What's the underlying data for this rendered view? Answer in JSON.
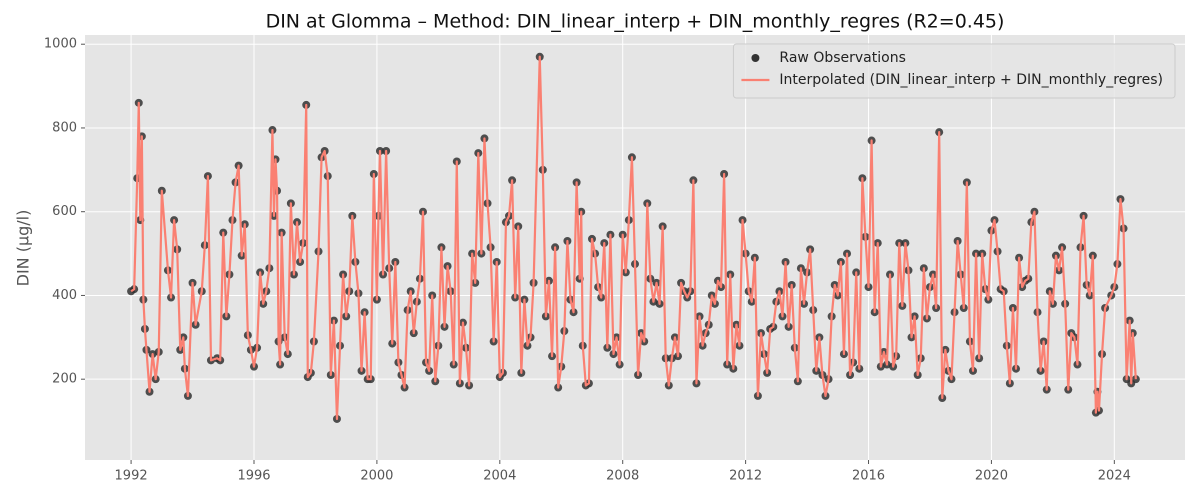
{
  "chart_data": {
    "type": "line",
    "title": "DIN at Glomma – Method: DIN_linear_interp + DIN_monthly_regres (R2=0.45)",
    "y_label": "DIN (µg/l)",
    "xlim": [
      1990.5,
      2026.3
    ],
    "xticks": [
      1992,
      1996,
      2000,
      2004,
      2008,
      2012,
      2016,
      2020,
      2024
    ],
    "ylim": [
      7,
      1022
    ],
    "yticks": [
      200,
      400,
      600,
      800,
      1000
    ],
    "grid": true,
    "legend": "upper right",
    "x": [
      1992.0,
      1992.1,
      1992.2,
      1992.25,
      1992.3,
      1992.35,
      1992.4,
      1992.45,
      1992.5,
      1992.6,
      1992.7,
      1992.8,
      1992.9,
      1993.0,
      1993.2,
      1993.3,
      1993.4,
      1993.5,
      1993.6,
      1993.7,
      1993.75,
      1993.85,
      1994.0,
      1994.1,
      1994.3,
      1994.4,
      1994.5,
      1994.6,
      1994.8,
      1994.9,
      1995.0,
      1995.1,
      1995.2,
      1995.3,
      1995.4,
      1995.5,
      1995.6,
      1995.7,
      1995.8,
      1995.9,
      1996.0,
      1996.1,
      1996.2,
      1996.3,
      1996.4,
      1996.5,
      1996.6,
      1996.65,
      1996.7,
      1996.75,
      1996.8,
      1996.85,
      1996.9,
      1997.0,
      1997.1,
      1997.2,
      1997.3,
      1997.4,
      1997.5,
      1997.6,
      1997.7,
      1997.75,
      1997.85,
      1997.95,
      1998.1,
      1998.2,
      1998.3,
      1998.4,
      1998.5,
      1998.6,
      1998.7,
      1998.8,
      1998.9,
      1999.0,
      1999.1,
      1999.2,
      1999.3,
      1999.4,
      1999.5,
      1999.6,
      1999.7,
      1999.8,
      1999.9,
      2000.0,
      2000.05,
      2000.1,
      2000.2,
      2000.3,
      2000.4,
      2000.5,
      2000.6,
      2000.7,
      2000.8,
      2000.9,
      2001.0,
      2001.1,
      2001.2,
      2001.3,
      2001.4,
      2001.5,
      2001.6,
      2001.7,
      2001.8,
      2001.9,
      2002.0,
      2002.1,
      2002.2,
      2002.3,
      2002.4,
      2002.5,
      2002.6,
      2002.7,
      2002.8,
      2002.9,
      2003.0,
      2003.1,
      2003.2,
      2003.3,
      2003.4,
      2003.5,
      2003.6,
      2003.7,
      2003.8,
      2003.9,
      2004.0,
      2004.1,
      2004.2,
      2004.3,
      2004.4,
      2004.5,
      2004.6,
      2004.7,
      2004.8,
      2004.9,
      2005.0,
      2005.1,
      2005.3,
      2005.4,
      2005.5,
      2005.6,
      2005.7,
      2005.8,
      2005.9,
      2006.0,
      2006.1,
      2006.2,
      2006.3,
      2006.4,
      2006.5,
      2006.6,
      2006.65,
      2006.7,
      2006.8,
      2006.9,
      2007.0,
      2007.1,
      2007.2,
      2007.3,
      2007.4,
      2007.5,
      2007.6,
      2007.7,
      2007.8,
      2007.9,
      2008.0,
      2008.1,
      2008.2,
      2008.3,
      2008.4,
      2008.5,
      2008.6,
      2008.7,
      2008.8,
      2008.9,
      2009.0,
      2009.1,
      2009.2,
      2009.3,
      2009.4,
      2009.5,
      2009.6,
      2009.7,
      2009.8,
      2009.9,
      2010.0,
      2010.1,
      2010.2,
      2010.3,
      2010.4,
      2010.5,
      2010.6,
      2010.7,
      2010.8,
      2010.9,
      2011.0,
      2011.1,
      2011.2,
      2011.3,
      2011.4,
      2011.5,
      2011.6,
      2011.7,
      2011.8,
      2011.9,
      2012.0,
      2012.1,
      2012.2,
      2012.3,
      2012.4,
      2012.5,
      2012.6,
      2012.7,
      2012.8,
      2012.9,
      2013.0,
      2013.1,
      2013.2,
      2013.3,
      2013.4,
      2013.5,
      2013.6,
      2013.7,
      2013.8,
      2013.9,
      2014.0,
      2014.1,
      2014.2,
      2014.3,
      2014.4,
      2014.5,
      2014.6,
      2014.7,
      2014.8,
      2014.9,
      2015.0,
      2015.1,
      2015.2,
      2015.3,
      2015.4,
      2015.5,
      2015.6,
      2015.7,
      2015.8,
      2015.9,
      2016.0,
      2016.1,
      2016.2,
      2016.3,
      2016.4,
      2016.5,
      2016.6,
      2016.7,
      2016.8,
      2016.9,
      2017.0,
      2017.1,
      2017.2,
      2017.3,
      2017.4,
      2017.5,
      2017.6,
      2017.7,
      2017.8,
      2017.9,
      2018.0,
      2018.1,
      2018.2,
      2018.3,
      2018.4,
      2018.5,
      2018.6,
      2018.7,
      2018.8,
      2018.9,
      2019.0,
      2019.1,
      2019.2,
      2019.3,
      2019.4,
      2019.5,
      2019.6,
      2019.7,
      2019.8,
      2019.9,
      2020.0,
      2020.1,
      2020.2,
      2020.3,
      2020.4,
      2020.5,
      2020.6,
      2020.7,
      2020.8,
      2020.9,
      2021.0,
      2021.1,
      2021.2,
      2021.3,
      2021.4,
      2021.5,
      2021.6,
      2021.7,
      2021.8,
      2021.9,
      2022.0,
      2022.1,
      2022.2,
      2022.3,
      2022.4,
      2022.5,
      2022.6,
      2022.7,
      2022.8,
      2022.9,
      2023.0,
      2023.1,
      2023.2,
      2023.3,
      2023.4,
      2023.45,
      2023.5,
      2023.6,
      2023.7,
      2023.9,
      2024.0,
      2024.1,
      2024.2,
      2024.3,
      2024.4,
      2024.5,
      2024.55,
      2024.6,
      2024.7
    ],
    "series": [
      {
        "name": "Raw Observations",
        "style": "scatter",
        "color": "#333333",
        "values": [
          410,
          415,
          680,
          860,
          580,
          780,
          390,
          320,
          270,
          170,
          260,
          200,
          265,
          650,
          460,
          395,
          580,
          510,
          270,
          300,
          225,
          160,
          430,
          330,
          410,
          520,
          685,
          245,
          250,
          245,
          550,
          350,
          450,
          580,
          670,
          710,
          495,
          570,
          305,
          270,
          230,
          275,
          455,
          380,
          410,
          465,
          795,
          590,
          725,
          650,
          290,
          235,
          550,
          300,
          260,
          620,
          450,
          575,
          480,
          525,
          855,
          205,
          215,
          290,
          505,
          730,
          745,
          685,
          210,
          340,
          105,
          280,
          450,
          350,
          410,
          590,
          480,
          405,
          220,
          360,
          200,
          200,
          690,
          390,
          590,
          745,
          450,
          745,
          465,
          285,
          480,
          240,
          210,
          180,
          365,
          410,
          310,
          385,
          440,
          600,
          240,
          220,
          400,
          195,
          280,
          515,
          325,
          470,
          410,
          235,
          720,
          190,
          335,
          275,
          185,
          500,
          430,
          740,
          500,
          775,
          620,
          515,
          290,
          480,
          205,
          215,
          575,
          590,
          675,
          395,
          565,
          215,
          390,
          280,
          300,
          430,
          970,
          700,
          350,
          435,
          255,
          515,
          180,
          230,
          315,
          530,
          390,
          360,
          670,
          440,
          600,
          280,
          185,
          190,
          535,
          500,
          420,
          395,
          525,
          275,
          545,
          260,
          300,
          235,
          545,
          455,
          580,
          730,
          475,
          210,
          310,
          290,
          620,
          440,
          385,
          430,
          380,
          565,
          250,
          185,
          250,
          300,
          255,
          430,
          410,
          395,
          410,
          675,
          190,
          350,
          280,
          310,
          330,
          400,
          380,
          435,
          420,
          690,
          235,
          450,
          225,
          330,
          280,
          580,
          500,
          410,
          385,
          490,
          160,
          310,
          260,
          215,
          320,
          325,
          385,
          410,
          350,
          480,
          325,
          425,
          275,
          195,
          465,
          380,
          455,
          510,
          365,
          220,
          300,
          210,
          160,
          200,
          350,
          425,
          400,
          480,
          260,
          500,
          210,
          240,
          455,
          225,
          680,
          540,
          420,
          770,
          360,
          525,
          230,
          265,
          235,
          450,
          230,
          255,
          525,
          375,
          525,
          460,
          300,
          350,
          210,
          250,
          465,
          345,
          420,
          450,
          370,
          790,
          155,
          270,
          220,
          200,
          360,
          530,
          450,
          370,
          670,
          290,
          220,
          500,
          250,
          500,
          415,
          390,
          555,
          580,
          505,
          415,
          410,
          280,
          190,
          370,
          225,
          490,
          420,
          435,
          440,
          575,
          600,
          360,
          220,
          290,
          175,
          410,
          380,
          495,
          460,
          515,
          380,
          175,
          310,
          300,
          235,
          515,
          590,
          425,
          400,
          495,
          120,
          170,
          125,
          260,
          370,
          400,
          420,
          475,
          630,
          560,
          200,
          340,
          190,
          310,
          200
        ]
      },
      {
        "name": "Interpolated (DIN_linear_interp + DIN_monthly_regres)",
        "style": "line",
        "color": "#fa8072",
        "values": [
          410,
          415,
          680,
          860,
          580,
          780,
          390,
          320,
          270,
          170,
          260,
          200,
          265,
          650,
          460,
          395,
          580,
          510,
          270,
          300,
          225,
          160,
          430,
          330,
          410,
          520,
          685,
          245,
          250,
          245,
          550,
          350,
          450,
          580,
          670,
          710,
          495,
          570,
          305,
          270,
          230,
          275,
          455,
          380,
          410,
          465,
          795,
          590,
          725,
          650,
          290,
          235,
          550,
          300,
          260,
          620,
          450,
          575,
          480,
          525,
          855,
          205,
          215,
          290,
          505,
          730,
          745,
          685,
          210,
          340,
          105,
          280,
          450,
          350,
          410,
          590,
          480,
          405,
          220,
          360,
          200,
          200,
          690,
          390,
          590,
          745,
          450,
          745,
          465,
          285,
          480,
          240,
          210,
          180,
          365,
          410,
          310,
          385,
          440,
          600,
          240,
          220,
          400,
          195,
          280,
          515,
          325,
          470,
          410,
          235,
          720,
          190,
          335,
          275,
          185,
          500,
          430,
          740,
          500,
          775,
          620,
          515,
          290,
          480,
          205,
          215,
          575,
          590,
          675,
          395,
          565,
          215,
          390,
          280,
          300,
          430,
          970,
          700,
          350,
          435,
          255,
          515,
          180,
          230,
          315,
          530,
          390,
          360,
          670,
          440,
          600,
          280,
          185,
          190,
          535,
          500,
          420,
          395,
          525,
          275,
          545,
          260,
          300,
          235,
          545,
          455,
          580,
          730,
          475,
          210,
          310,
          290,
          620,
          440,
          385,
          430,
          380,
          565,
          250,
          185,
          250,
          300,
          255,
          430,
          410,
          395,
          410,
          675,
          190,
          350,
          280,
          310,
          330,
          400,
          380,
          435,
          420,
          690,
          235,
          450,
          225,
          330,
          280,
          580,
          500,
          410,
          385,
          490,
          160,
          310,
          260,
          215,
          320,
          325,
          385,
          410,
          350,
          480,
          325,
          425,
          275,
          195,
          465,
          380,
          455,
          510,
          365,
          220,
          300,
          210,
          160,
          200,
          350,
          425,
          400,
          480,
          260,
          500,
          210,
          240,
          455,
          225,
          680,
          540,
          420,
          770,
          360,
          525,
          230,
          265,
          235,
          450,
          230,
          255,
          525,
          375,
          525,
          460,
          300,
          350,
          210,
          250,
          465,
          345,
          420,
          450,
          370,
          790,
          155,
          270,
          220,
          200,
          360,
          530,
          450,
          370,
          670,
          290,
          220,
          500,
          250,
          500,
          415,
          390,
          555,
          580,
          505,
          415,
          410,
          280,
          190,
          370,
          225,
          490,
          420,
          435,
          440,
          575,
          600,
          360,
          220,
          290,
          175,
          410,
          380,
          495,
          460,
          515,
          380,
          175,
          310,
          300,
          235,
          515,
          590,
          425,
          400,
          495,
          120,
          170,
          125,
          260,
          370,
          400,
          420,
          475,
          630,
          560,
          200,
          340,
          190,
          310,
          200
        ]
      }
    ]
  }
}
